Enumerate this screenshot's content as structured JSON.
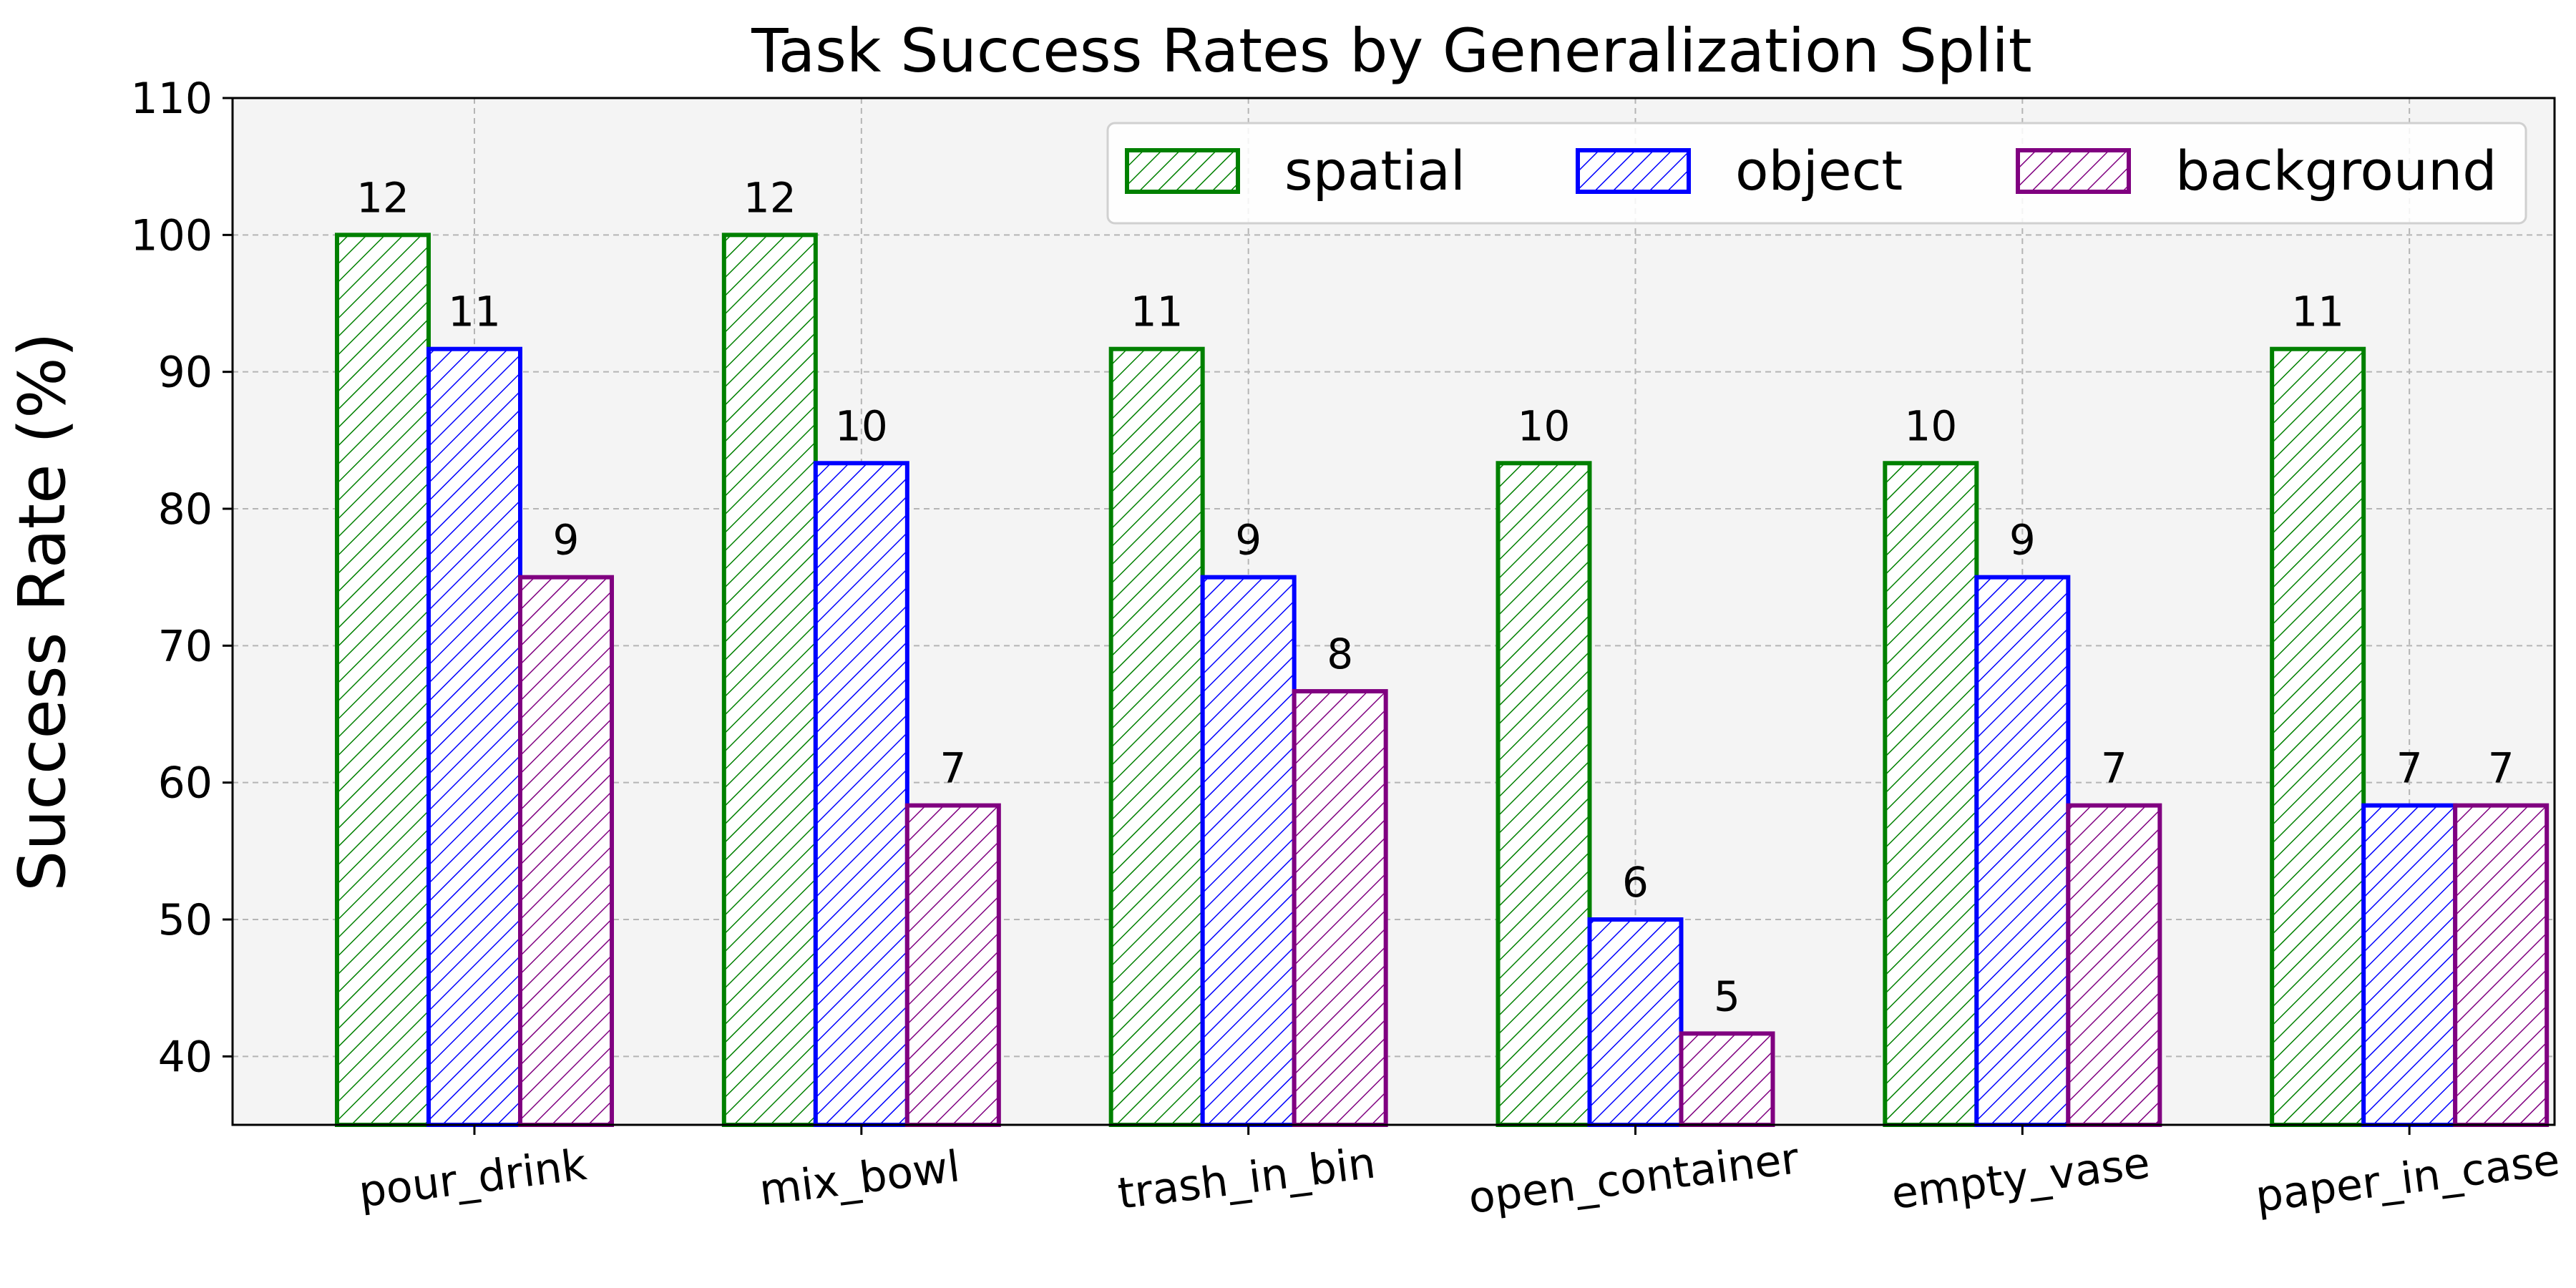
{
  "chart_data": {
    "type": "bar",
    "title": "Task Success Rates by Generalization Split",
    "xlabel": "",
    "ylabel": "Success Rate (%)",
    "ylim": [
      35,
      110
    ],
    "yticks": [
      40,
      50,
      60,
      70,
      80,
      90,
      100,
      110
    ],
    "grid": true,
    "legend_position": "top-right",
    "categories": [
      "pour_drink",
      "mix_bowl",
      "trash_in_bin",
      "open_container",
      "empty_vase",
      "paper_in_case"
    ],
    "series": [
      {
        "name": "spatial",
        "color": "#008000",
        "values": [
          100,
          100,
          91.67,
          83.33,
          83.33,
          91.67
        ],
        "labels": [
          "12",
          "12",
          "11",
          "10",
          "10",
          "11"
        ]
      },
      {
        "name": "object",
        "color": "#0000ff",
        "values": [
          91.67,
          83.33,
          75,
          50,
          75,
          58.33
        ],
        "labels": [
          "11",
          "10",
          "9",
          "6",
          "9",
          "7"
        ]
      },
      {
        "name": "background",
        "color": "#800080",
        "values": [
          75,
          58.33,
          66.67,
          41.67,
          58.33,
          58.33
        ],
        "labels": [
          "9",
          "7",
          "8",
          "5",
          "7",
          "7"
        ]
      }
    ]
  }
}
